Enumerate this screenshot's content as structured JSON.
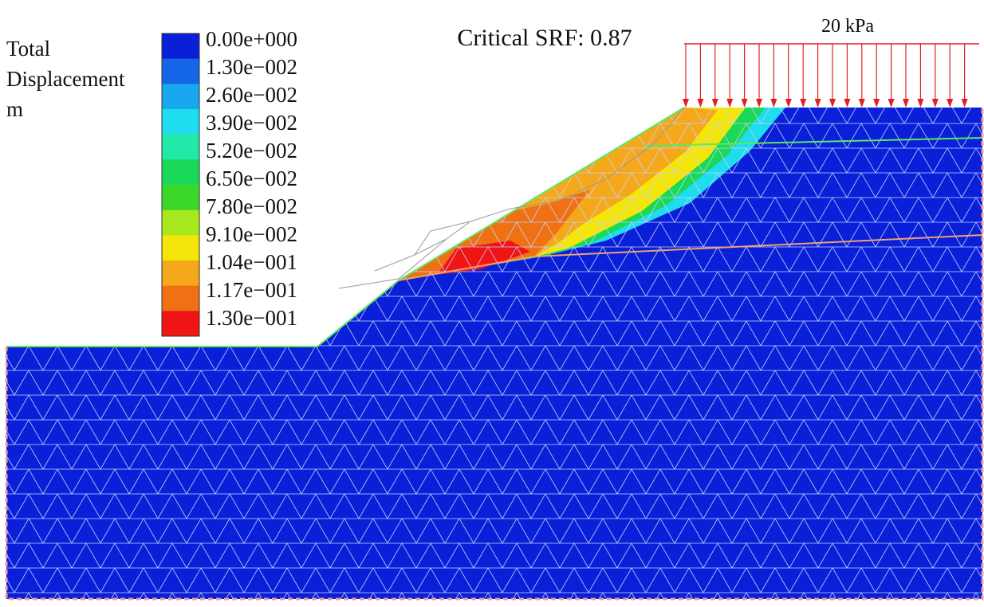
{
  "title": "Critical SRF: 0.87",
  "load_label": "20 kPa",
  "legend": {
    "title": [
      "Total",
      "Displacement",
      "m"
    ],
    "labels": [
      "0.00e+000",
      "1.30e−002",
      "2.60e−002",
      "3.90e−002",
      "5.20e−002",
      "6.50e−002",
      "7.80e−002",
      "9.10e−002",
      "1.04e−001",
      "1.17e−001",
      "1.30e−001"
    ],
    "colors": [
      "#0a1fd8",
      "#1466e6",
      "#19a8f0",
      "#1fdcee",
      "#22e8a8",
      "#1ad858",
      "#3bd82a",
      "#a8e81e",
      "#f5e60a",
      "#f5a81a",
      "#f07014",
      "#f01414"
    ]
  }
}
